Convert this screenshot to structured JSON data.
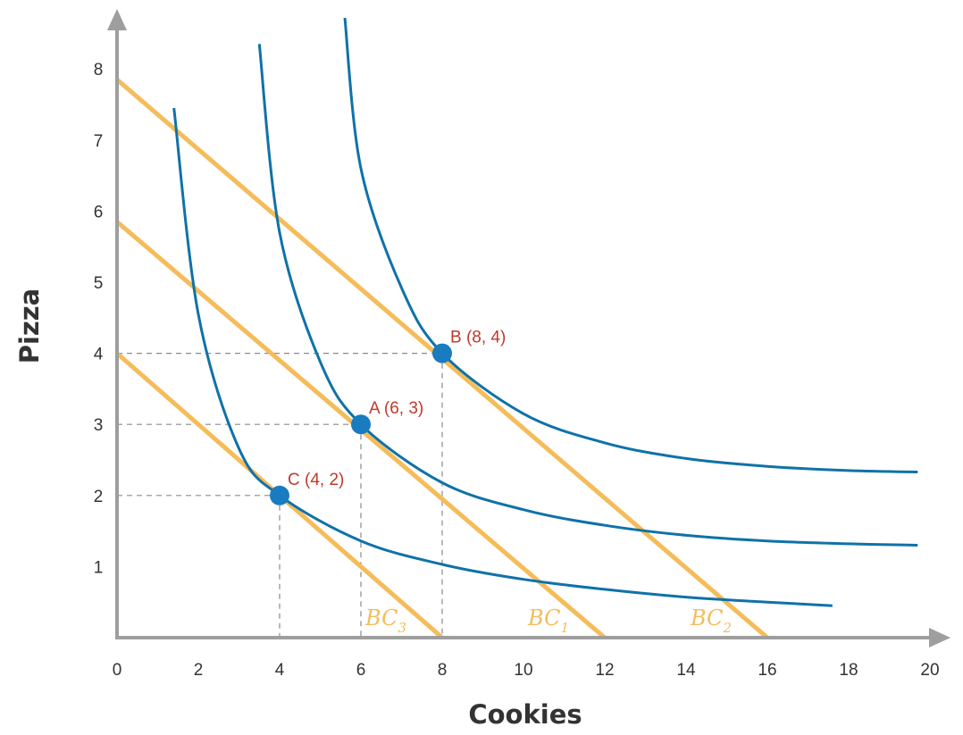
{
  "chart_data": {
    "type": "line",
    "title": "",
    "xlabel": "Cookies",
    "ylabel": "Pizza",
    "xlim": [
      0,
      20
    ],
    "ylim": [
      0,
      8.5
    ],
    "x_ticks": [
      "0",
      "2",
      "4",
      "6",
      "8",
      "10",
      "12",
      "14",
      "16",
      "18",
      "20"
    ],
    "y_ticks": [
      "1",
      "2",
      "3",
      "4",
      "5",
      "6",
      "7",
      "8"
    ],
    "grid": false,
    "colors": {
      "indifference": "#0f72a8",
      "budget": "#f5bc5a",
      "point": "#1a7cc0",
      "point_label": "#c0392b",
      "axis": "#9e9e9e",
      "guide": "#8a8a8a"
    },
    "budget_lines": [
      {
        "name": "BC",
        "sub": "3",
        "x": [
          0,
          8
        ],
        "y": [
          4,
          0
        ]
      },
      {
        "name": "BC",
        "sub": "1",
        "x": [
          0,
          12
        ],
        "y": [
          5.85,
          0
        ]
      },
      {
        "name": "BC",
        "sub": "2",
        "x": [
          0,
          16
        ],
        "y": [
          7.85,
          0
        ]
      }
    ],
    "indifference_curves": [
      {
        "x": [
          1.4,
          2,
          3,
          4,
          6,
          8,
          10,
          12,
          14,
          16,
          17.6
        ],
        "y": [
          7.45,
          4.55,
          2.66,
          2.0,
          1.36,
          1.03,
          0.82,
          0.68,
          0.57,
          0.5,
          0.45
        ]
      },
      {
        "x": [
          3.5,
          4,
          5,
          6,
          8,
          10,
          12,
          14,
          16,
          18,
          19.7
        ],
        "y": [
          8.35,
          5.7,
          3.88,
          3.0,
          2.18,
          1.8,
          1.58,
          1.44,
          1.36,
          1.32,
          1.3
        ]
      },
      {
        "x": [
          5.6,
          6,
          7,
          8,
          10,
          12,
          14,
          16,
          18,
          19.7
        ],
        "y": [
          8.75,
          6.6,
          4.92,
          4.0,
          3.15,
          2.74,
          2.52,
          2.41,
          2.35,
          2.33
        ]
      }
    ],
    "points": [
      {
        "label": "C (4, 2)",
        "x": 4,
        "y": 2
      },
      {
        "label": "A (6, 3)",
        "x": 6,
        "y": 3
      },
      {
        "label": "B (8, 4)",
        "x": 8,
        "y": 4
      }
    ]
  }
}
